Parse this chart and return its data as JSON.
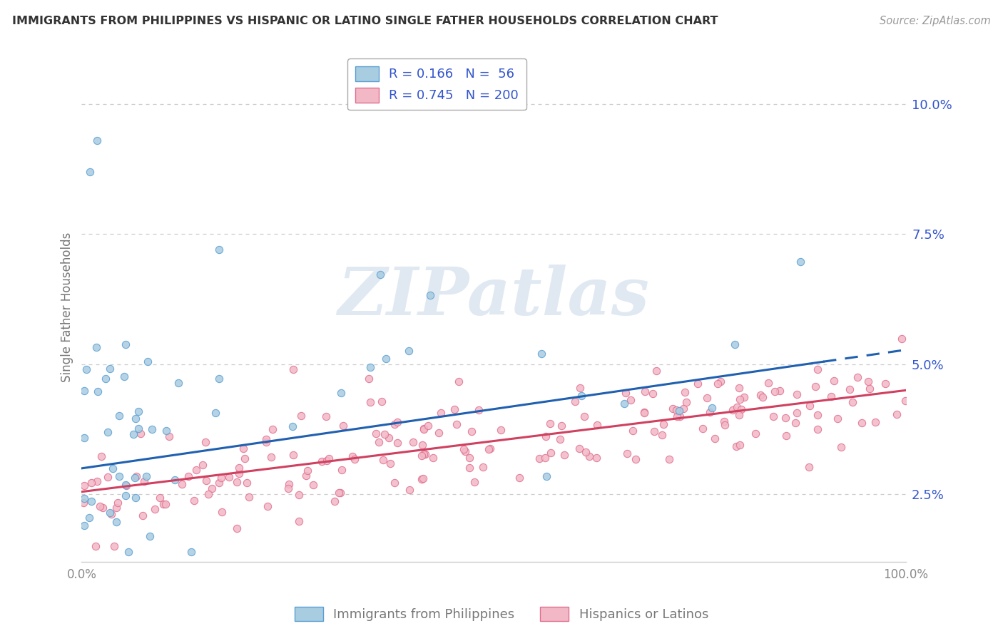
{
  "title": "IMMIGRANTS FROM PHILIPPINES VS HISPANIC OR LATINO SINGLE FATHER HOUSEHOLDS CORRELATION CHART",
  "source": "Source: ZipAtlas.com",
  "ylabel": "Single Father Households",
  "xlim": [
    0,
    100
  ],
  "ylim": [
    1.2,
    11.0
  ],
  "yticks": [
    2.5,
    5.0,
    7.5,
    10.0
  ],
  "xtick_labels": [
    "0.0%",
    "100.0%"
  ],
  "ytick_labels": [
    "2.5%",
    "5.0%",
    "7.5%",
    "10.0%"
  ],
  "legend_r1": "R = 0.166",
  "legend_n1": "N =  56",
  "legend_r2": "R = 0.745",
  "legend_n2": "N = 200",
  "color_blue": "#a8cce0",
  "color_pink": "#f2b8c6",
  "edge_blue": "#5a9fd4",
  "edge_pink": "#e07090",
  "line_blue": "#2060b0",
  "line_pink": "#d04060",
  "watermark": "ZIPatlas",
  "bg_color": "#ffffff",
  "grid_color": "#cccccc",
  "legend_text_color": "#3355cc",
  "title_color": "#333333",
  "axis_color": "#888888",
  "ylabel_color": "#777777",
  "source_color": "#999999",
  "bottom_label_color": "#777777",
  "blue_solid_end": 90,
  "blue_line_start_y": 3.0,
  "blue_line_end_y": 5.05,
  "pink_line_start_y": 2.55,
  "pink_line_end_y": 4.5
}
